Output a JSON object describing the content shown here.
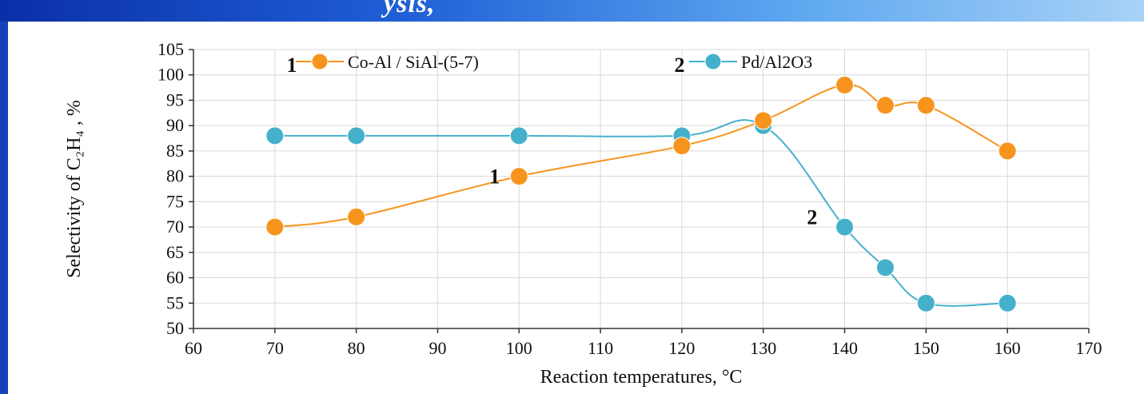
{
  "header": {
    "partial_title": "ysis,"
  },
  "chart_data": {
    "type": "line",
    "xlabel": "Reaction temperatures, °C",
    "ylabel": "Selectivity of C₂H₄ , %",
    "xlim": [
      60,
      170
    ],
    "ylim": [
      50,
      105
    ],
    "x_ticks": [
      60,
      70,
      80,
      90,
      100,
      110,
      120,
      130,
      140,
      150,
      160,
      170
    ],
    "y_ticks": [
      50,
      55,
      60,
      65,
      70,
      75,
      80,
      85,
      90,
      95,
      100,
      105
    ],
    "grid": true,
    "legend_position": "top",
    "series": [
      {
        "name": "Co-Al / SiAl-(5-7)",
        "legend_number": "1",
        "color": "#f7941d",
        "x": [
          70,
          80,
          100,
          120,
          130,
          140,
          145,
          150,
          160
        ],
        "y": [
          70,
          72,
          80,
          86,
          91,
          98,
          94,
          94,
          85
        ]
      },
      {
        "name": "Pd/Al2O3",
        "legend_number": "2",
        "color": "#45b0cc",
        "x": [
          70,
          80,
          100,
          120,
          130,
          140,
          145,
          150,
          160
        ],
        "y": [
          88,
          88,
          88,
          88,
          90,
          70,
          62,
          55,
          55
        ]
      }
    ],
    "annotations": [
      {
        "text": "1",
        "x": 97,
        "y": 80
      },
      {
        "text": "2",
        "x": 136,
        "y": 72
      }
    ]
  }
}
